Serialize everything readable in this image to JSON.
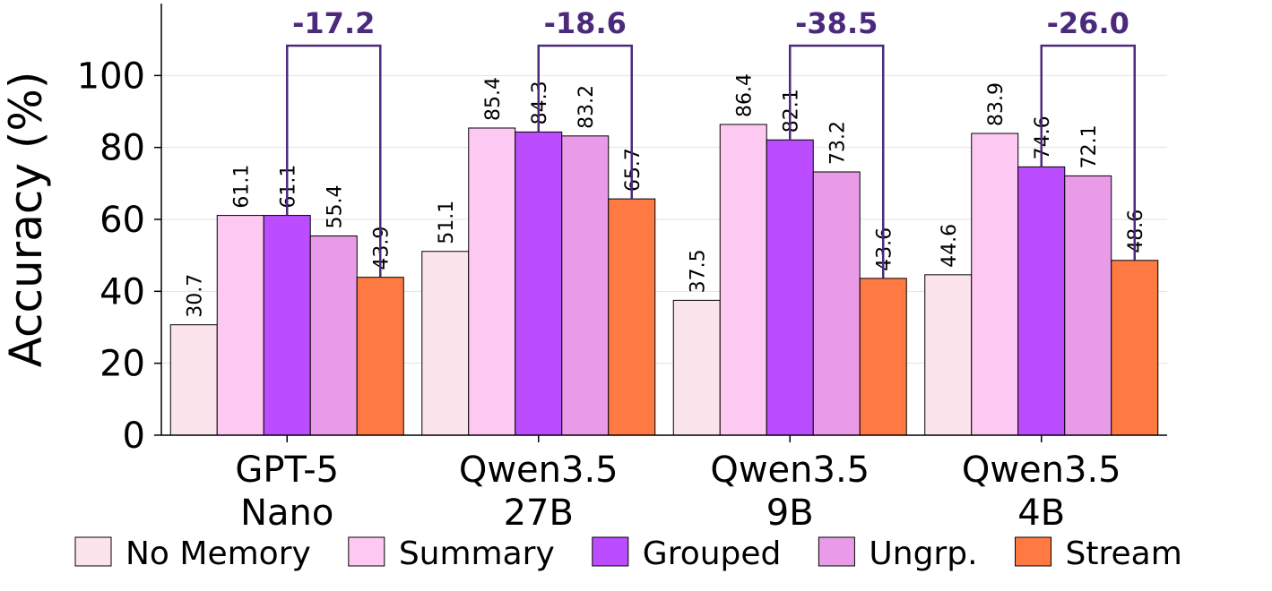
{
  "chart_data": {
    "type": "bar",
    "categories": [
      [
        "GPT-5",
        "Nano"
      ],
      [
        "Qwen3.5",
        "27B"
      ],
      [
        "Qwen3.5",
        "9B"
      ],
      [
        "Qwen3.5",
        "4B"
      ]
    ],
    "series": [
      {
        "name": "No Memory",
        "color": "#fce4ec",
        "values": [
          30.7,
          51.1,
          37.5,
          44.6
        ]
      },
      {
        "name": "Summary",
        "color": "#fdc8f2",
        "values": [
          61.1,
          85.4,
          86.4,
          83.9
        ]
      },
      {
        "name": "Grouped",
        "color": "#bc4dff",
        "values": [
          61.1,
          84.3,
          82.1,
          74.6
        ]
      },
      {
        "name": "Ungrp.",
        "color": "#e99be8",
        "values": [
          55.4,
          83.2,
          73.2,
          72.1
        ]
      },
      {
        "name": "Stream",
        "color": "#ff7a42",
        "values": [
          43.9,
          65.7,
          43.6,
          48.6
        ]
      }
    ],
    "value_labels": [
      [
        "30.7",
        "51.1",
        "37.5",
        "44.6"
      ],
      [
        "61.1",
        "85.4",
        "86.4",
        "83.9"
      ],
      [
        "61.1",
        "84.3",
        "82.1",
        "74.6"
      ],
      [
        "55.4",
        "83.2",
        "73.2",
        "72.1"
      ],
      [
        "43.9",
        "65.7",
        "43.6",
        "48.6"
      ]
    ],
    "annotations": [
      {
        "label": "-17.2",
        "from_series": 2,
        "to_series": 4,
        "category": 0
      },
      {
        "label": "-18.6",
        "from_series": 2,
        "to_series": 4,
        "category": 1
      },
      {
        "label": "-38.5",
        "from_series": 2,
        "to_series": 4,
        "category": 2
      },
      {
        "label": "-26.0",
        "from_series": 2,
        "to_series": 4,
        "category": 3
      }
    ],
    "annotation_color": "#4b2a7b",
    "ylabel": "Accuracy (%)",
    "yticks": [
      0,
      20,
      40,
      60,
      80,
      100
    ],
    "ylim": [
      0,
      120
    ],
    "grid": true,
    "legend_position": "bottom"
  }
}
